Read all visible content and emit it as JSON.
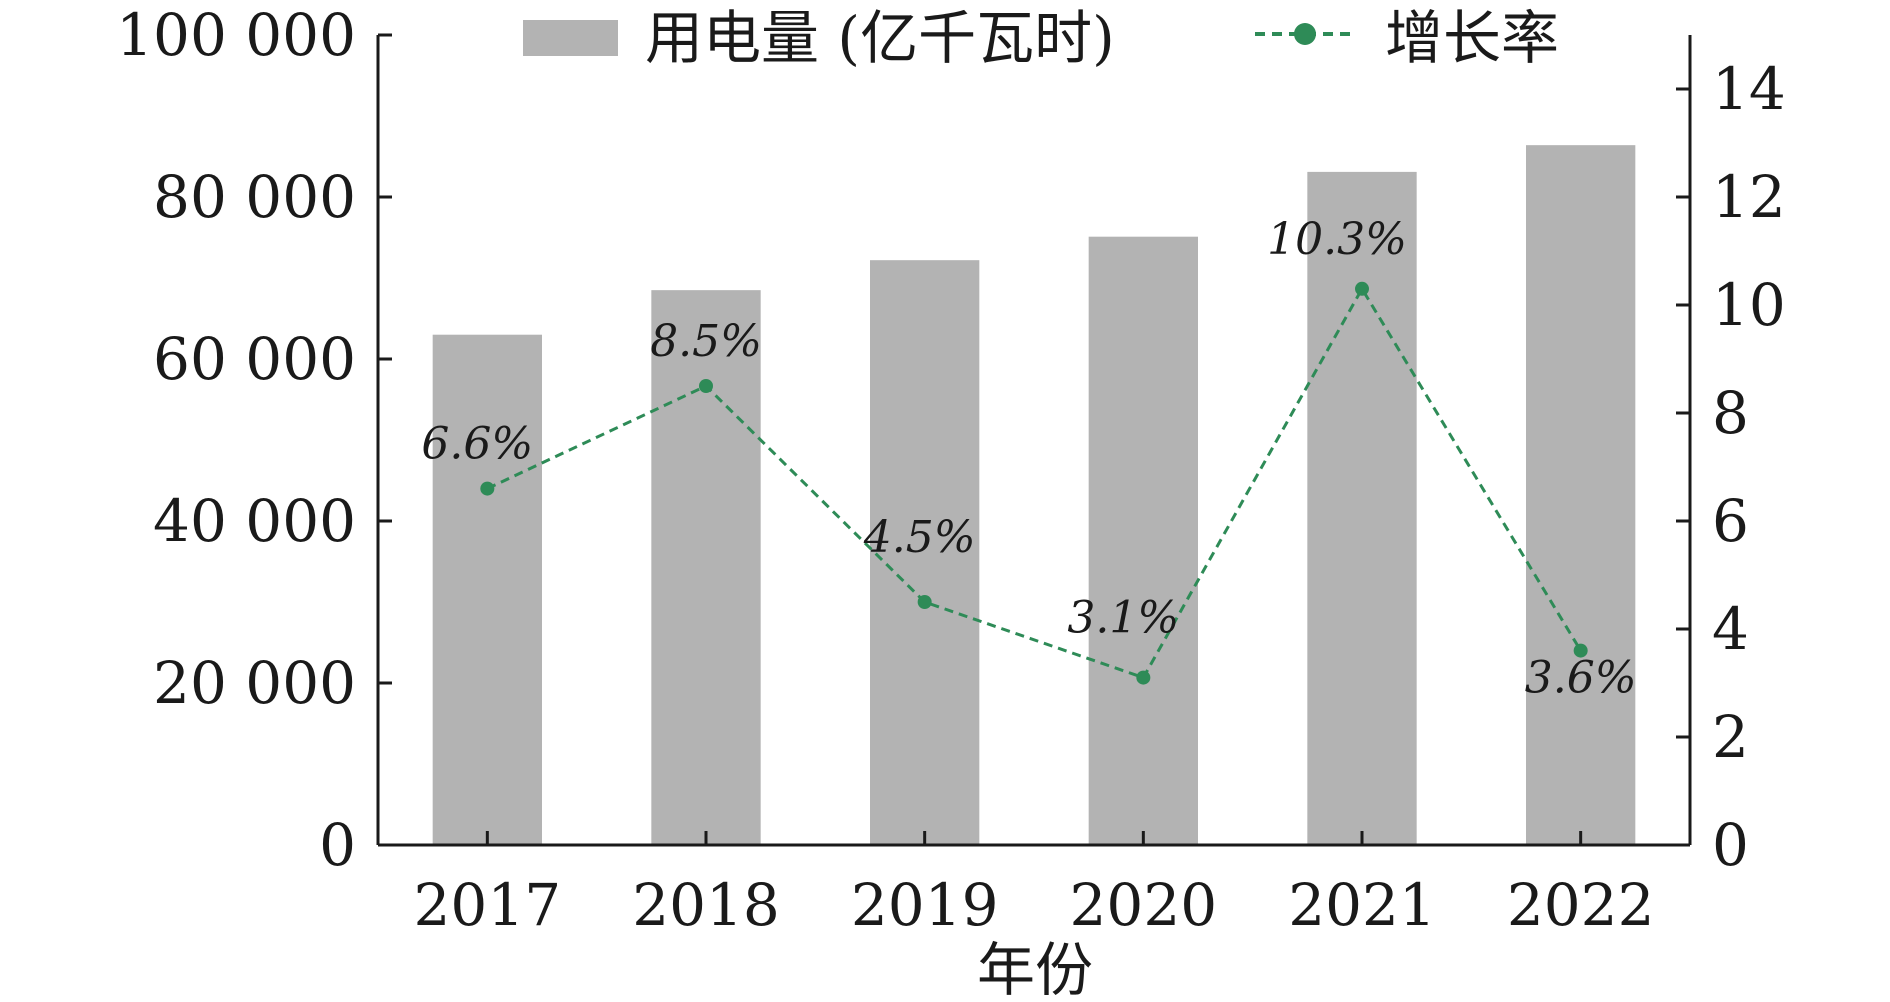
{
  "chart_data": {
    "type": "bar",
    "categories": [
      "2017",
      "2018",
      "2019",
      "2020",
      "2021",
      "2022"
    ],
    "series": [
      {
        "name": "用电量 (亿千瓦时)",
        "type": "bar",
        "axis": "left",
        "values": [
          63000,
          68500,
          72200,
          75100,
          83100,
          86400
        ]
      },
      {
        "name": "增长率",
        "type": "line",
        "axis": "right",
        "values": [
          6.6,
          8.5,
          4.5,
          3.1,
          10.3,
          3.6
        ],
        "data_labels": [
          "6.6%",
          "8.5%",
          "4.5%",
          "3.1%",
          "10.3%",
          "3.6%"
        ]
      }
    ],
    "xlabel": "年份",
    "ylabel": "",
    "ylabel_right": "",
    "ylim": [
      0,
      100000
    ],
    "y2lim": [
      0,
      15
    ],
    "yticks": [
      0,
      20000,
      40000,
      60000,
      80000,
      100000
    ],
    "ytick_labels": [
      "0",
      "20 000",
      "40 000",
      "60 000",
      "80 000",
      "100 000"
    ],
    "y2ticks": [
      0,
      2,
      4,
      6,
      8,
      10,
      12,
      14
    ],
    "y2tick_labels": [
      "0",
      "2",
      "4",
      "6",
      "8",
      "10",
      "12",
      "14"
    ],
    "legend_position": "top",
    "grid": false,
    "colors": {
      "bar": "#b3b3b3",
      "line": "#2e8b57",
      "axis": "#1a1a1a"
    }
  }
}
